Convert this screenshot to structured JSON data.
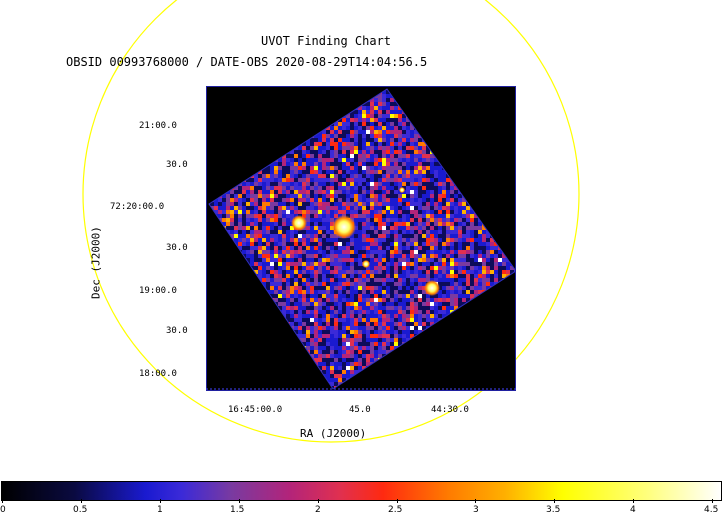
{
  "chart_data": {
    "type": "heatmap",
    "title": "UVOT Finding Chart",
    "subtitle": "OBSID 00993768000 / DATE-OBS 2020-08-29T14:04:56.5",
    "xlabel": "RA (J2000)",
    "ylabel": "Dec (J2000)",
    "xticks": [
      "16:45:00.0",
      "45.0",
      "44:30.0"
    ],
    "yticks": [
      "21:00.0",
      "30.0",
      "72:20:00.0",
      "30.0",
      "19:00.0",
      "30.0",
      "18:00.0"
    ],
    "colorbar": {
      "ticks": [
        "0",
        "0.5",
        "1",
        "1.5",
        "2",
        "2.5",
        "3",
        "3.5",
        "4",
        "4.5"
      ],
      "range": [
        0,
        4.55
      ]
    },
    "circle_color": "#ffff00",
    "sources": [
      {
        "label": "bright source 1",
        "ra_offset_deg": 0.0,
        "level": 4.5
      },
      {
        "label": "bright source 2",
        "level": 4.5
      },
      {
        "label": "bright source 3",
        "level": 4.5
      }
    ]
  }
}
